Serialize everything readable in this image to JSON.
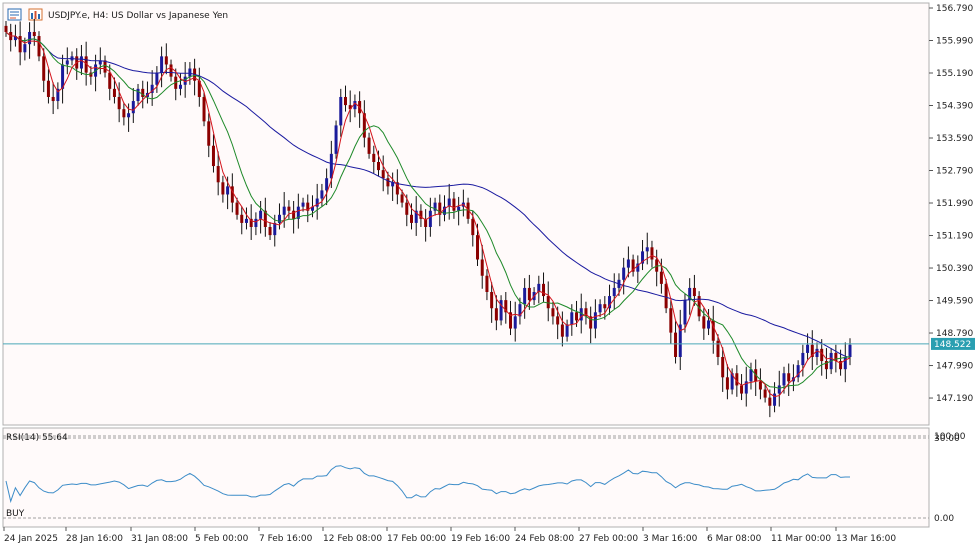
{
  "header": {
    "title": "USDJPY.e, H4:  US Dollar vs Japanese Yen",
    "icon_left": "chart-window-icon",
    "icon_right": "bar-chart-icon"
  },
  "colors": {
    "background": "#ffffff",
    "plot_background": "#fffafa",
    "bull_candle": "#1a1a9a",
    "bear_candle": "#8b0000",
    "ma_fast": "#d4141c",
    "ma_mid": "#1f8a2a",
    "ma_slow": "#1a1aa0",
    "rsi": "#3c8cc8",
    "price_line": "#4aa8b8",
    "price_label_bg": "#2a9fb1"
  },
  "chart_data": [
    {
      "type": "candlestick",
      "symbol": "USDJPY.e",
      "timeframe": "H4",
      "title": "USDJPY.e, H4:  US Dollar vs Japanese Yen",
      "yticks": [
        "156.790",
        "155.990",
        "155.190",
        "154.390",
        "153.590",
        "152.790",
        "151.990",
        "151.190",
        "150.390",
        "149.590",
        "148.790",
        "147.990",
        "147.190"
      ],
      "ytick_values": [
        156.79,
        155.99,
        155.19,
        154.39,
        153.59,
        152.79,
        151.99,
        151.19,
        150.39,
        149.59,
        148.79,
        147.99,
        147.19
      ],
      "xticks": [
        "24 Jan 2025",
        "28 Jan 16:00",
        "31 Jan 08:00",
        "5 Feb 00:00",
        "7 Feb 16:00",
        "12 Feb 08:00",
        "17 Feb 00:00",
        "19 Feb 16:00",
        "24 Feb 08:00",
        "27 Feb 00:00",
        "3 Mar 16:00",
        "6 Mar 08:00",
        "11 Mar 00:00",
        "13 Mar 16:00"
      ],
      "ylim": [
        146.5,
        156.8
      ],
      "current_price": "148.522",
      "current_price_value": 148.522,
      "close_series": [
        156.2,
        156.0,
        156.1,
        155.7,
        155.9,
        156.2,
        156.1,
        155.6,
        155.0,
        154.6,
        154.5,
        154.8,
        155.4,
        155.5,
        155.6,
        155.3,
        155.6,
        155.2,
        155.1,
        155.4,
        155.5,
        155.2,
        154.8,
        154.6,
        154.3,
        154.1,
        154.2,
        154.5,
        154.8,
        154.6,
        154.7,
        154.9,
        155.2,
        155.6,
        155.4,
        155.1,
        154.8,
        154.9,
        155.1,
        155.3,
        155.0,
        154.6,
        154.0,
        153.4,
        152.9,
        152.5,
        152.2,
        152.4,
        152.0,
        151.7,
        151.5,
        151.6,
        151.4,
        151.6,
        151.8,
        151.4,
        151.2,
        151.5,
        151.7,
        151.9,
        151.8,
        151.6,
        151.9,
        152.0,
        151.8,
        151.9,
        152.1,
        152.3,
        152.6,
        153.2,
        153.9,
        154.6,
        154.4,
        154.3,
        154.5,
        154.2,
        153.6,
        153.2,
        153.0,
        152.8,
        152.6,
        152.4,
        152.5,
        152.2,
        152.0,
        151.7,
        151.5,
        151.8,
        151.6,
        151.4,
        151.8,
        152.0,
        151.7,
        151.9,
        152.1,
        151.8,
        151.9,
        152.0,
        151.6,
        151.2,
        150.6,
        150.2,
        149.8,
        149.4,
        149.1,
        149.6,
        149.3,
        148.9,
        149.2,
        149.5,
        149.9,
        149.6,
        149.8,
        150.0,
        149.7,
        149.4,
        149.2,
        149.0,
        148.7,
        149.0,
        149.3,
        149.1,
        149.4,
        149.2,
        148.9,
        149.3,
        149.5,
        149.4,
        149.7,
        149.9,
        150.1,
        150.4,
        150.6,
        150.3,
        150.5,
        150.8,
        150.9,
        150.6,
        150.3,
        150.0,
        149.4,
        148.8,
        148.2,
        149.0,
        149.6,
        149.9,
        149.7,
        149.2,
        148.9,
        149.1,
        148.6,
        148.2,
        147.7,
        147.4,
        147.8,
        147.5,
        147.3,
        147.6,
        147.9,
        147.6,
        147.4,
        147.2,
        147.0,
        147.3,
        147.5,
        147.8,
        147.6,
        147.7,
        148.0,
        148.3,
        148.5,
        148.2,
        148.4,
        148.1,
        147.9,
        148.3,
        148.1,
        147.9,
        148.2,
        148.5
      ]
    },
    {
      "type": "line",
      "title": "RSI(14) 55.64",
      "indicator": "RSI(14)",
      "value": 55.64,
      "signal_label": "BUY",
      "yticks": [
        "100.00",
        "30.00",
        "0.00"
      ],
      "ylim": [
        0,
        100
      ]
    }
  ]
}
